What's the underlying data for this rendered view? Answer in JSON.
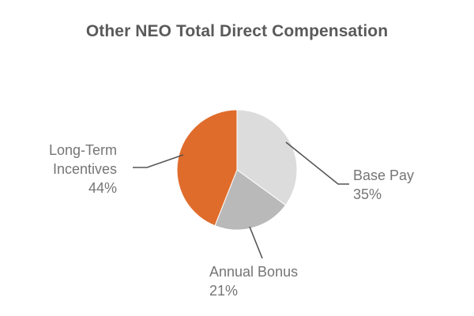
{
  "chart_data": {
    "type": "pie",
    "title": "Other NEO Total Direct Compensation",
    "slices": [
      {
        "label": [
          "Base Pay"
        ],
        "value": 35,
        "value_label": "35%",
        "color": "#dcdcdc"
      },
      {
        "label": [
          "Annual Bonus"
        ],
        "value": 21,
        "value_label": "21%",
        "color": "#b9b9b9"
      },
      {
        "label": [
          "Long-Term",
          "Incentives"
        ],
        "value": 44,
        "value_label": "44%",
        "color": "#e06c2c"
      }
    ],
    "start_angle_deg": 0,
    "direction": "clockwise",
    "leader_line_color": "#555555"
  }
}
